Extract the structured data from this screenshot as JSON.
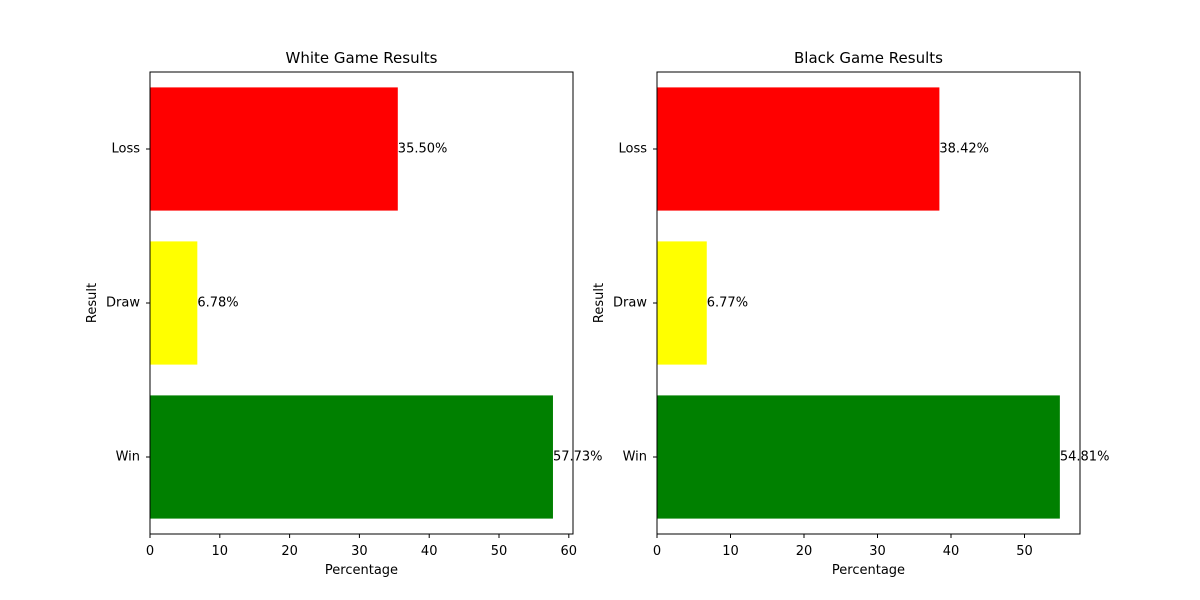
{
  "chart_data": [
    {
      "type": "bar",
      "orientation": "horizontal",
      "title": "White Game Results",
      "xlabel": "Percentage",
      "ylabel": "Result",
      "categories": [
        "Win",
        "Draw",
        "Loss"
      ],
      "values": [
        57.73,
        6.78,
        35.5
      ],
      "value_labels": [
        "57.73%",
        "6.78%",
        "35.50%"
      ],
      "colors": [
        "#008000",
        "#ffff00",
        "#ff0000"
      ],
      "xlim": [
        0,
        60.6
      ],
      "xticks": [
        0,
        10,
        20,
        30,
        40,
        50,
        60
      ],
      "grid": false,
      "legend": "none"
    },
    {
      "type": "bar",
      "orientation": "horizontal",
      "title": "Black Game Results",
      "xlabel": "Percentage",
      "ylabel": "Result",
      "categories": [
        "Win",
        "Draw",
        "Loss"
      ],
      "values": [
        54.81,
        6.77,
        38.42
      ],
      "value_labels": [
        "54.81%",
        "6.77%",
        "38.42%"
      ],
      "colors": [
        "#008000",
        "#ffff00",
        "#ff0000"
      ],
      "xlim": [
        0,
        57.55
      ],
      "xticks": [
        0,
        10,
        20,
        30,
        40,
        50
      ],
      "grid": false,
      "legend": "none"
    }
  ]
}
